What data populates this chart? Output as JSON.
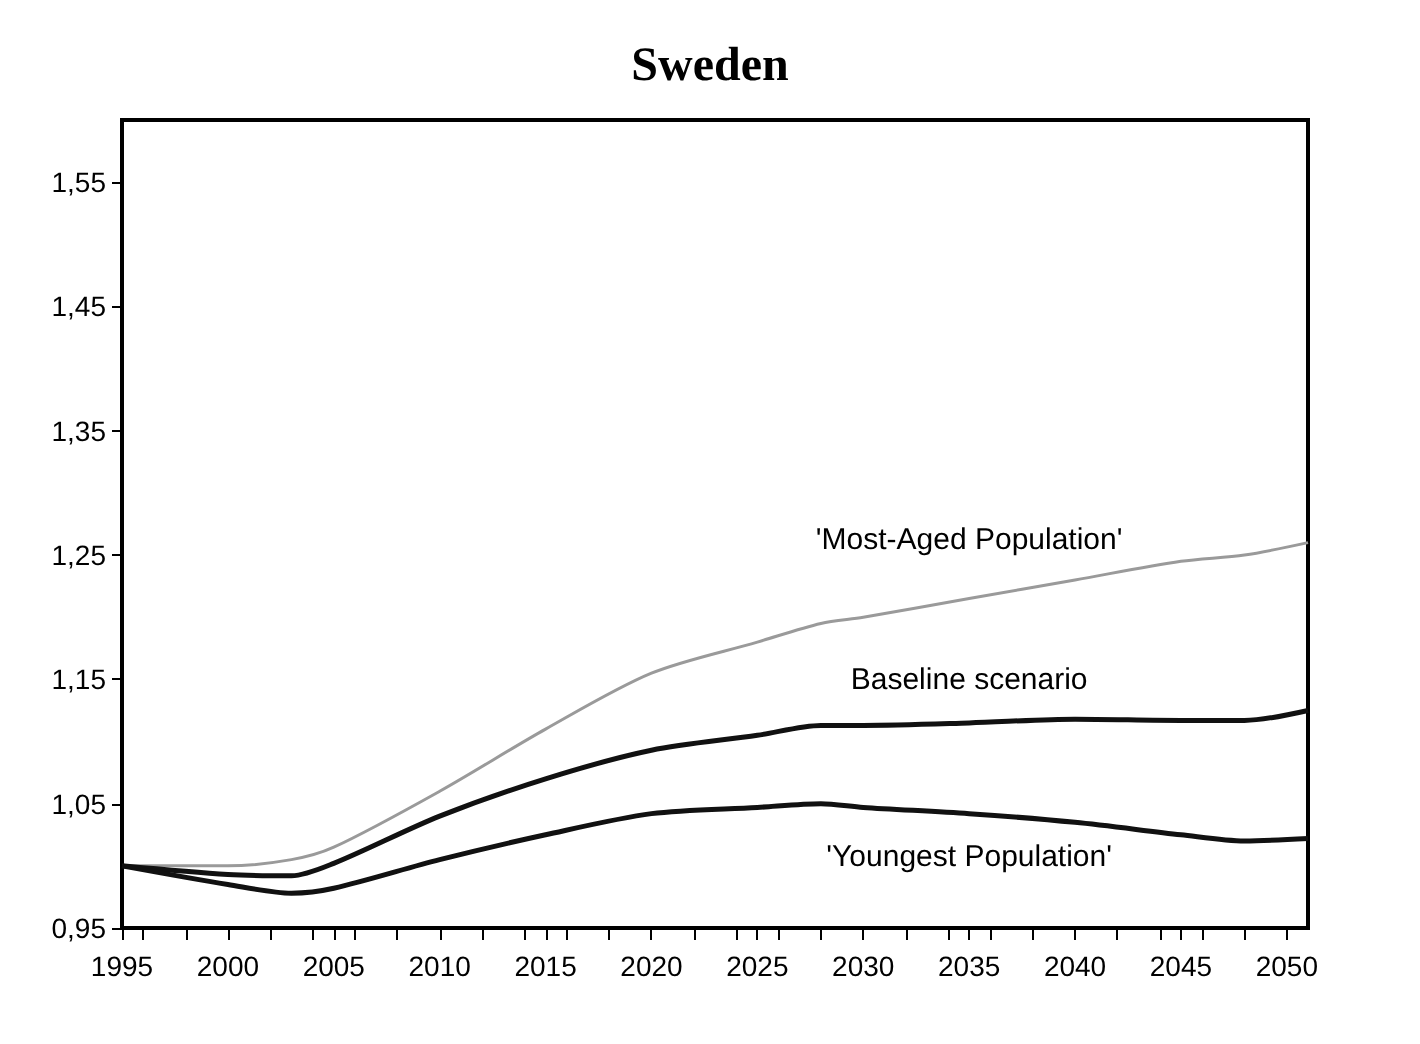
{
  "chart_data": {
    "type": "line",
    "title": "Sweden",
    "xlim": [
      1995,
      2051
    ],
    "xticks": [
      1995,
      2000,
      2005,
      2010,
      2015,
      2020,
      2025,
      2030,
      2035,
      2040,
      2045,
      2050
    ],
    "ylim": [
      0.95,
      1.6
    ],
    "yticks": [
      {
        "value": 0.95,
        "label": "0,95"
      },
      {
        "value": 1.05,
        "label": "1,05"
      },
      {
        "value": 1.15,
        "label": "1,15"
      },
      {
        "value": 1.25,
        "label": "1,25"
      },
      {
        "value": 1.35,
        "label": "1,35"
      },
      {
        "value": 1.45,
        "label": "1,45"
      },
      {
        "value": 1.55,
        "label": "1,55"
      }
    ],
    "x": [
      1995,
      2000,
      2003,
      2005,
      2010,
      2015,
      2020,
      2025,
      2028,
      2030,
      2035,
      2040,
      2045,
      2048,
      2051
    ],
    "series": [
      {
        "name": "'Most-Aged Population'",
        "color": "#9a9a9a",
        "values": [
          1.0,
          1.0,
          1.005,
          1.015,
          1.06,
          1.11,
          1.155,
          1.18,
          1.195,
          1.2,
          1.215,
          1.23,
          1.245,
          1.25,
          1.26
        ]
      },
      {
        "name": "Baseline scenario",
        "color": "#111111",
        "values": [
          1.0,
          0.993,
          0.992,
          1.002,
          1.04,
          1.07,
          1.093,
          1.105,
          1.113,
          1.113,
          1.115,
          1.118,
          1.117,
          1.117,
          1.125
        ]
      },
      {
        "name": "'Youngest Population'",
        "color": "#111111",
        "values": [
          1.0,
          0.985,
          0.978,
          0.982,
          1.005,
          1.025,
          1.042,
          1.047,
          1.05,
          1.047,
          1.042,
          1.035,
          1.025,
          1.02,
          1.022
        ]
      }
    ],
    "grid": false,
    "legend": false,
    "marker": "none",
    "line_style": "solid"
  }
}
